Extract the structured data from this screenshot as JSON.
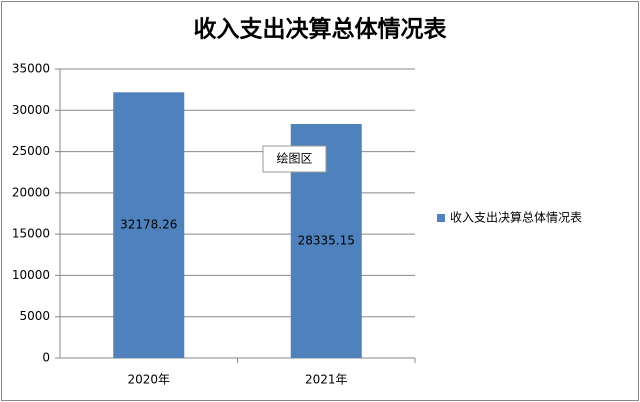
{
  "chart_data": {
    "type": "bar",
    "title": "收入支出决算总体情况表",
    "categories": [
      "2020年",
      "2021年"
    ],
    "series": [
      {
        "name": "收入支出决算总体情况表",
        "color": "#4f81bd",
        "values": [
          32178.26,
          28335.15
        ]
      }
    ],
    "ylim": [
      0,
      35000
    ],
    "yticks": [
      0,
      5000,
      10000,
      15000,
      20000,
      25000,
      30000,
      35000
    ],
    "grid": true,
    "legend": "right",
    "annotations": [
      "绘图区"
    ]
  }
}
